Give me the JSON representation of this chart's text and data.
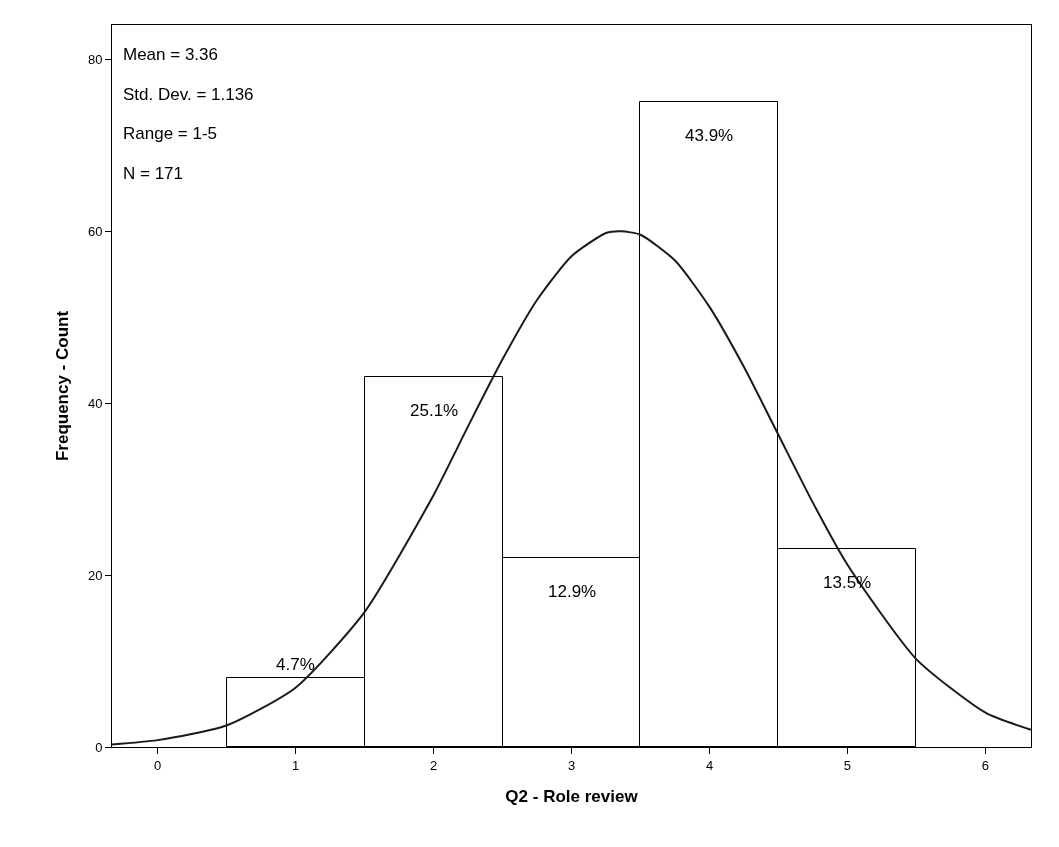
{
  "chart_data": {
    "type": "histogram",
    "xlabel": "Q2 - Role review",
    "ylabel": "Frequency - Count",
    "bins": [
      0.5,
      1.5,
      2.5,
      3.5,
      4.5,
      5.5
    ],
    "values": [
      8,
      43,
      22,
      75,
      23
    ],
    "color": "#ffffff",
    "series": [
      {
        "type": "line",
        "color": "#1a1a1a",
        "x": [
          -0.33,
          0,
          0.5,
          1,
          1.5,
          2,
          2.25,
          2.5,
          2.75,
          3,
          3.25,
          3.36,
          3.5,
          3.75,
          4,
          4.25,
          4.5,
          4.75,
          5,
          5.5,
          6,
          6.33
        ],
        "values": [
          0.3,
          0.8,
          2.5,
          6.9,
          15.7,
          29.3,
          37.3,
          45.1,
          52.0,
          57.1,
          59.8,
          60.0,
          59.6,
          56.6,
          51.2,
          44.2,
          36.3,
          28.4,
          21.2,
          10.2,
          4.0,
          2.0
        ]
      }
    ],
    "annotations": [
      "Mean = 3.36",
      "Std. Dev. = 1.136",
      "Range = 1-5",
      "N = 171",
      {
        "text": "4.7%",
        "x": 1,
        "y": 8
      },
      {
        "text": "25.1%",
        "x": 2,
        "y": 43
      },
      {
        "text": "12.9%",
        "x": 3,
        "y": 22
      },
      {
        "text": "43.9%",
        "x": 4,
        "y": 75
      },
      {
        "text": "13.5%",
        "x": 5,
        "y": 23
      }
    ],
    "xlim": [
      -0.33,
      6.33
    ],
    "xticks": [
      0,
      1,
      2,
      3,
      4,
      5,
      6
    ],
    "ylim": [
      0,
      84
    ],
    "yticks": [
      0,
      20,
      40,
      60,
      80
    ]
  }
}
